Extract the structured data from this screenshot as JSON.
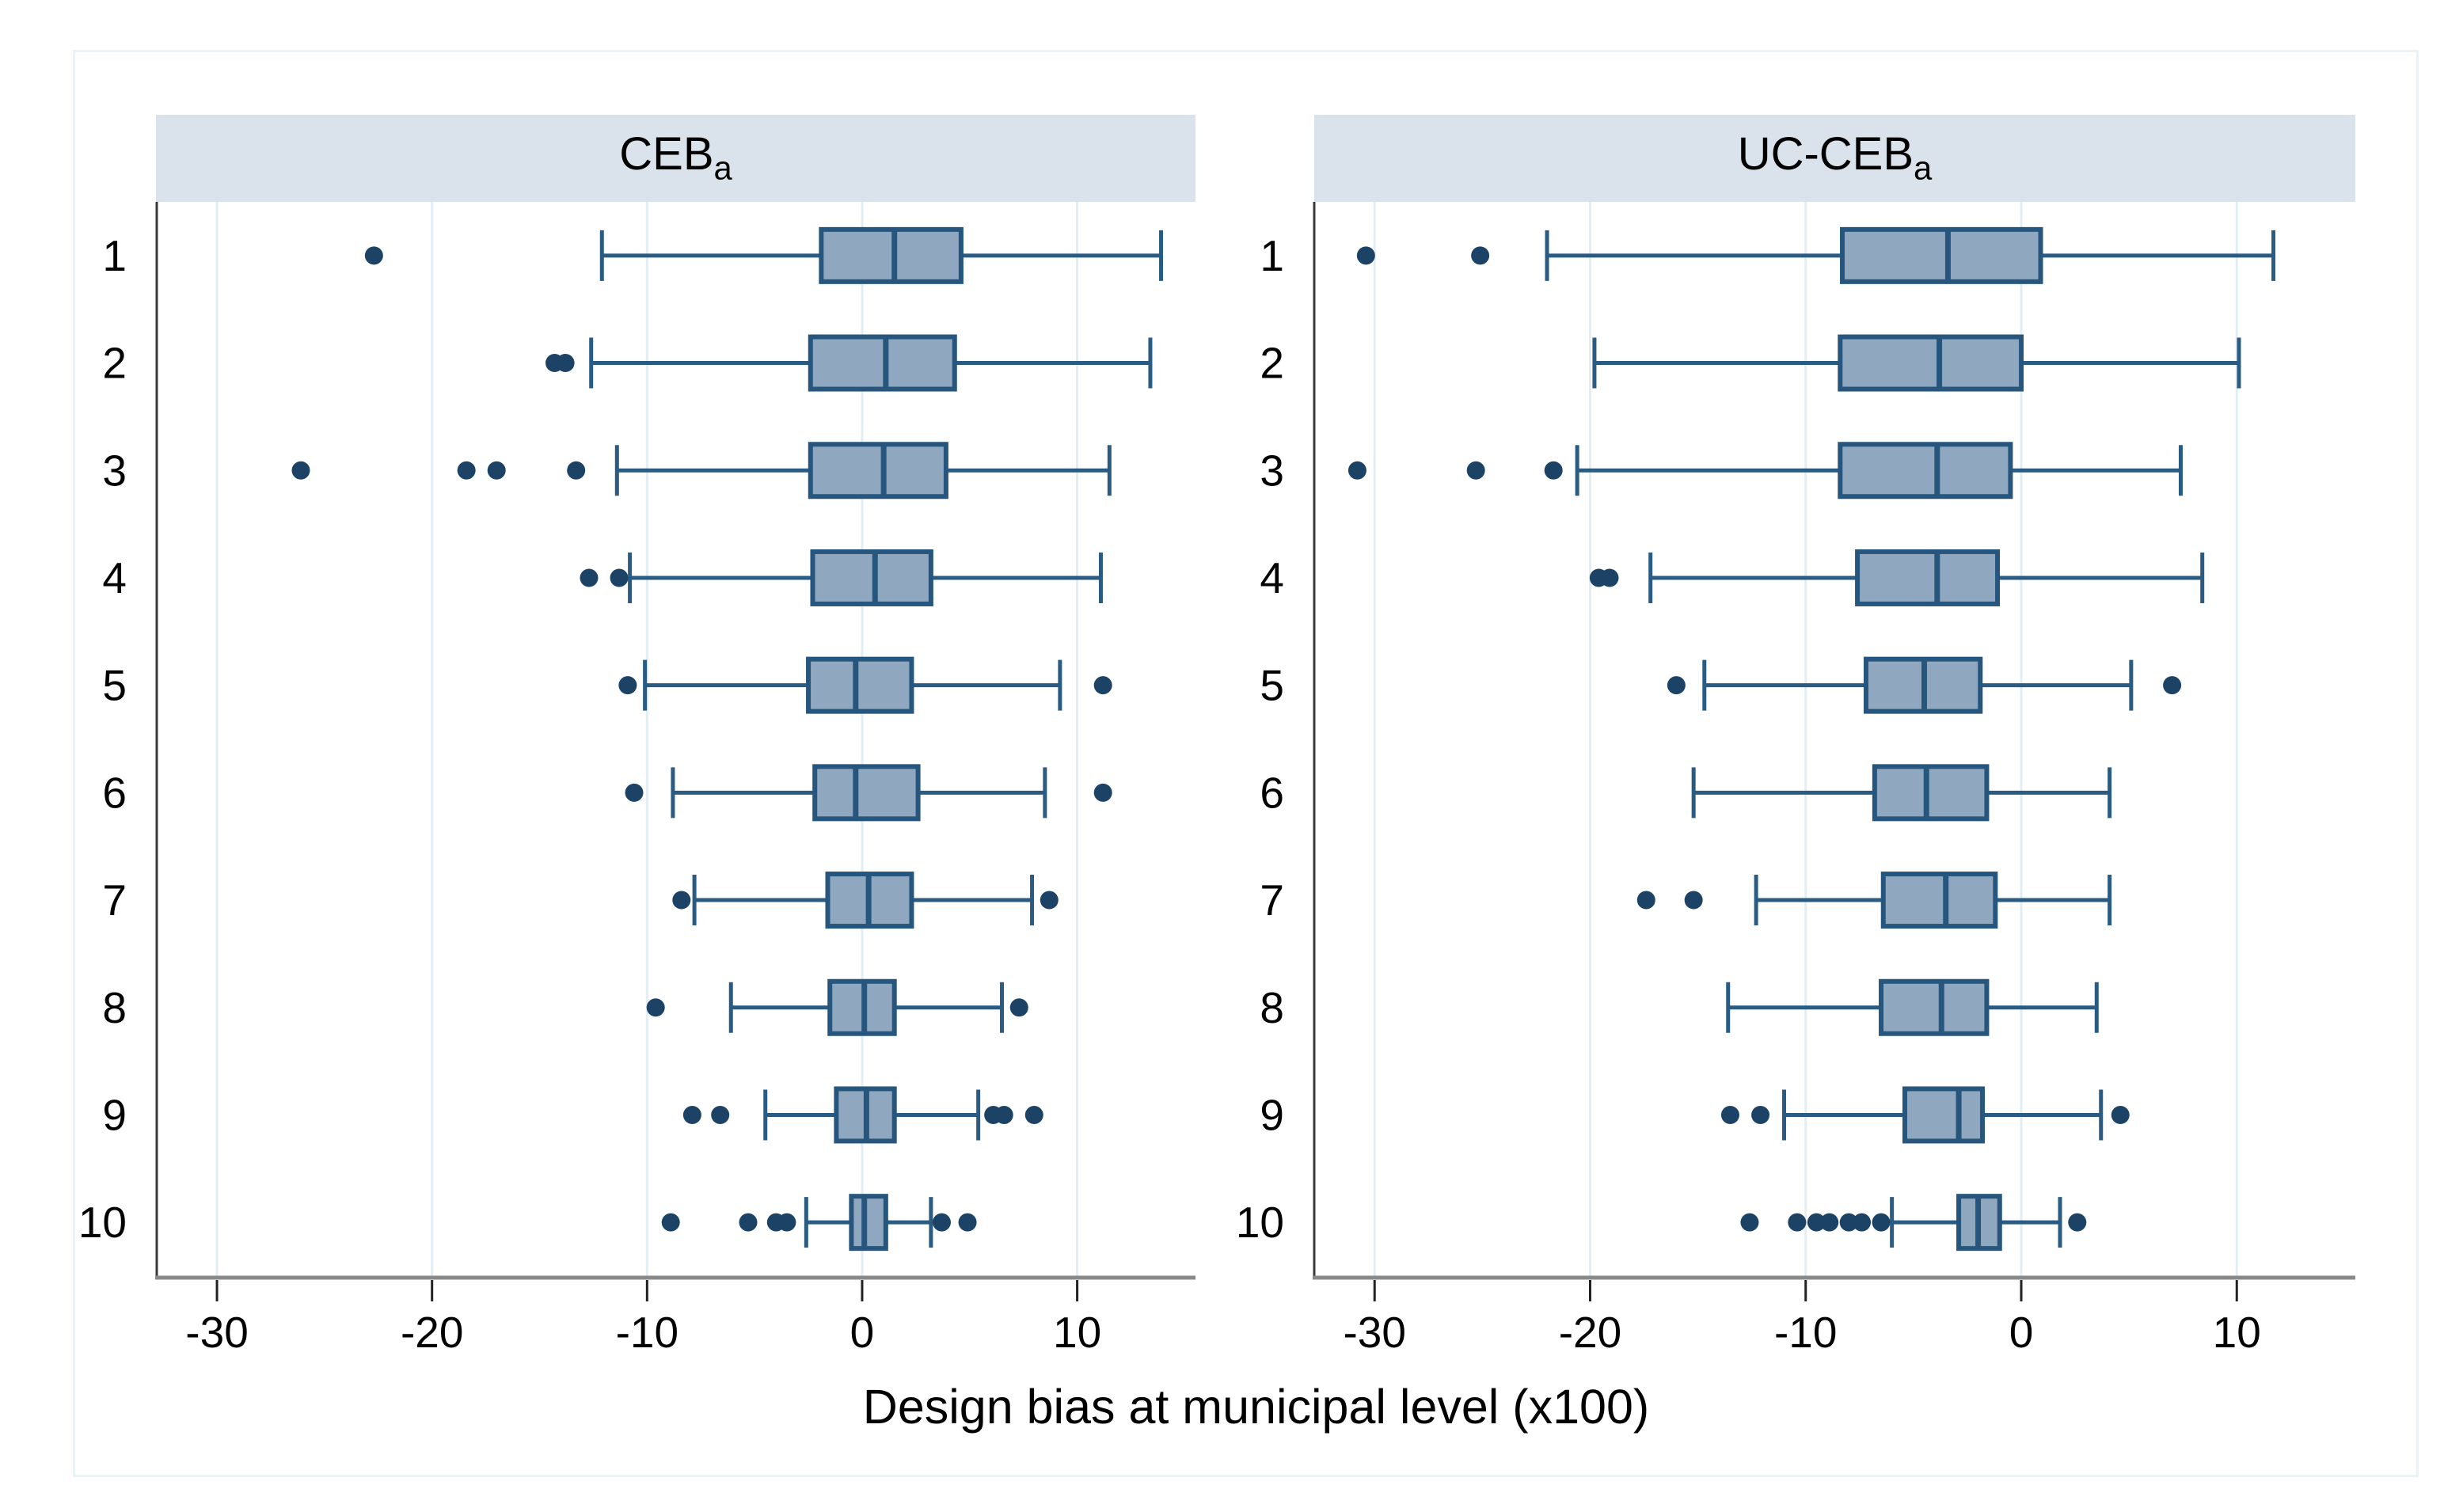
{
  "chart_data": {
    "type": "boxplot-horizontal",
    "xlabel": "Design bias at municipal level (x100)",
    "x_ticks": {
      "values": [
        -30,
        -20,
        -10,
        0,
        10
      ],
      "labels": [
        "-30",
        "-20",
        "-10",
        "0",
        "10"
      ]
    },
    "xlim": [
      -32.8,
      15.5
    ],
    "categories": [
      "1",
      "2",
      "3",
      "4",
      "5",
      "6",
      "7",
      "8",
      "9",
      "10"
    ],
    "grid": true,
    "colors": {
      "box_fill": "#8fa7bf",
      "box_stroke": "#26567d",
      "median": "#26567d",
      "whisker": "#2a5b82",
      "outlier_dot": "#1c4366",
      "title_band": "#dae3ec",
      "gridline": "#e3edf4",
      "bottom_axis": "#898989",
      "left_axis": "#3a3a3a",
      "tick": "#222222",
      "text": "#000000",
      "frame_border": "#ecf3f6"
    },
    "panels": [
      {
        "title": "CEB",
        "title_sub": "a",
        "rows": [
          {
            "cat": "1",
            "lo": -12.1,
            "q1": -1.9,
            "med": 1.5,
            "q3": 4.6,
            "hi": 13.9,
            "out": [
              -22.7
            ]
          },
          {
            "cat": "2",
            "lo": -12.6,
            "q1": -2.4,
            "med": 1.1,
            "q3": 4.3,
            "hi": 13.4,
            "out": [
              -14.3,
              -13.8
            ]
          },
          {
            "cat": "3",
            "lo": -11.4,
            "q1": -2.4,
            "med": 1.0,
            "q3": 3.9,
            "hi": 11.5,
            "out": [
              -26.1,
              -18.4,
              -17.0,
              -13.3
            ]
          },
          {
            "cat": "4",
            "lo": -10.8,
            "q1": -2.3,
            "med": 0.6,
            "q3": 3.2,
            "hi": 11.1,
            "out": [
              -12.7,
              -11.3
            ]
          },
          {
            "cat": "5",
            "lo": -10.1,
            "q1": -2.5,
            "med": -0.3,
            "q3": 2.3,
            "hi": 9.2,
            "out": [
              -10.9,
              11.2
            ]
          },
          {
            "cat": "6",
            "lo": -8.8,
            "q1": -2.2,
            "med": -0.3,
            "q3": 2.6,
            "hi": 8.5,
            "out": [
              -10.6,
              11.2
            ]
          },
          {
            "cat": "7",
            "lo": -7.8,
            "q1": -1.6,
            "med": 0.3,
            "q3": 2.3,
            "hi": 7.9,
            "out": [
              -8.4,
              8.7
            ]
          },
          {
            "cat": "8",
            "lo": -6.1,
            "q1": -1.5,
            "med": 0.1,
            "q3": 1.5,
            "hi": 6.5,
            "out": [
              -9.6,
              7.3
            ]
          },
          {
            "cat": "9",
            "lo": -4.5,
            "q1": -1.2,
            "med": 0.2,
            "q3": 1.5,
            "hi": 5.4,
            "out": [
              -7.9,
              -6.6,
              6.1,
              6.6,
              8.0
            ]
          },
          {
            "cat": "10",
            "lo": -2.6,
            "q1": -0.5,
            "med": 0.1,
            "q3": 1.1,
            "hi": 3.2,
            "out": [
              -8.9,
              -5.3,
              -4.0,
              -3.5,
              3.7,
              4.9
            ]
          }
        ]
      },
      {
        "title": "UC-CEB",
        "title_sub": "a",
        "rows": [
          {
            "cat": "1",
            "lo": -22.0,
            "q1": -8.3,
            "med": -3.4,
            "q3": 0.9,
            "hi": 11.7,
            "out": [
              -30.4,
              -25.1
            ]
          },
          {
            "cat": "2",
            "lo": -19.8,
            "q1": -8.4,
            "med": -3.8,
            "q3": 0.0,
            "hi": 10.1,
            "out": []
          },
          {
            "cat": "3",
            "lo": -20.6,
            "q1": -8.4,
            "med": -3.9,
            "q3": -0.5,
            "hi": 7.4,
            "out": [
              -30.8,
              -25.3,
              -21.7
            ]
          },
          {
            "cat": "4",
            "lo": -17.2,
            "q1": -7.6,
            "med": -3.9,
            "q3": -1.1,
            "hi": 8.4,
            "out": [
              -19.6,
              -19.1
            ]
          },
          {
            "cat": "5",
            "lo": -14.7,
            "q1": -7.2,
            "med": -4.5,
            "q3": -1.9,
            "hi": 5.1,
            "out": [
              -16.0,
              7.0
            ]
          },
          {
            "cat": "6",
            "lo": -15.2,
            "q1": -6.8,
            "med": -4.4,
            "q3": -1.6,
            "hi": 4.1,
            "out": []
          },
          {
            "cat": "7",
            "lo": -12.3,
            "q1": -6.4,
            "med": -3.5,
            "q3": -1.2,
            "hi": 4.1,
            "out": [
              -17.4,
              -15.2
            ]
          },
          {
            "cat": "8",
            "lo": -13.6,
            "q1": -6.5,
            "med": -3.7,
            "q3": -1.6,
            "hi": 3.5,
            "out": []
          },
          {
            "cat": "9",
            "lo": -11.0,
            "q1": -5.4,
            "med": -2.9,
            "q3": -1.8,
            "hi": 3.7,
            "out": [
              -13.5,
              -12.1,
              4.6
            ]
          },
          {
            "cat": "10",
            "lo": -6.0,
            "q1": -2.9,
            "med": -2.0,
            "q3": -1.0,
            "hi": 1.8,
            "out": [
              -12.6,
              -10.4,
              -9.5,
              -8.9,
              -8.0,
              -7.4,
              -6.5,
              2.6
            ]
          }
        ]
      }
    ]
  }
}
